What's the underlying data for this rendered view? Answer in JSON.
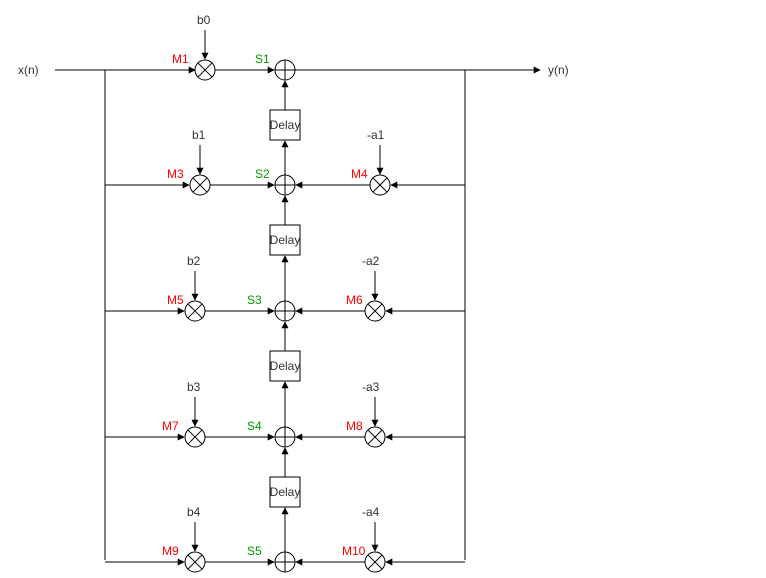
{
  "signals": {
    "input": "x(n)",
    "output": "y(n)"
  },
  "delay_label": "Delay",
  "colors": {
    "multiplier_label": "#ff0000",
    "adder_label": "#009900",
    "text": "#333333",
    "line": "#000000"
  },
  "stages": [
    {
      "b": "b0",
      "mult_b": "M1",
      "adder": "S1"
    },
    {
      "b": "b1",
      "mult_b": "M3",
      "adder": "S2",
      "a": "-a1",
      "mult_a": "M4"
    },
    {
      "b": "b2",
      "mult_b": "M5",
      "adder": "S3",
      "a": "-a2",
      "mult_a": "M6"
    },
    {
      "b": "b3",
      "mult_b": "M7",
      "adder": "S4",
      "a": "-a3",
      "mult_a": "M8"
    },
    {
      "b": "b4",
      "mult_b": "M9",
      "adder": "S5",
      "a": "-a4",
      "mult_a": "M10"
    }
  ]
}
